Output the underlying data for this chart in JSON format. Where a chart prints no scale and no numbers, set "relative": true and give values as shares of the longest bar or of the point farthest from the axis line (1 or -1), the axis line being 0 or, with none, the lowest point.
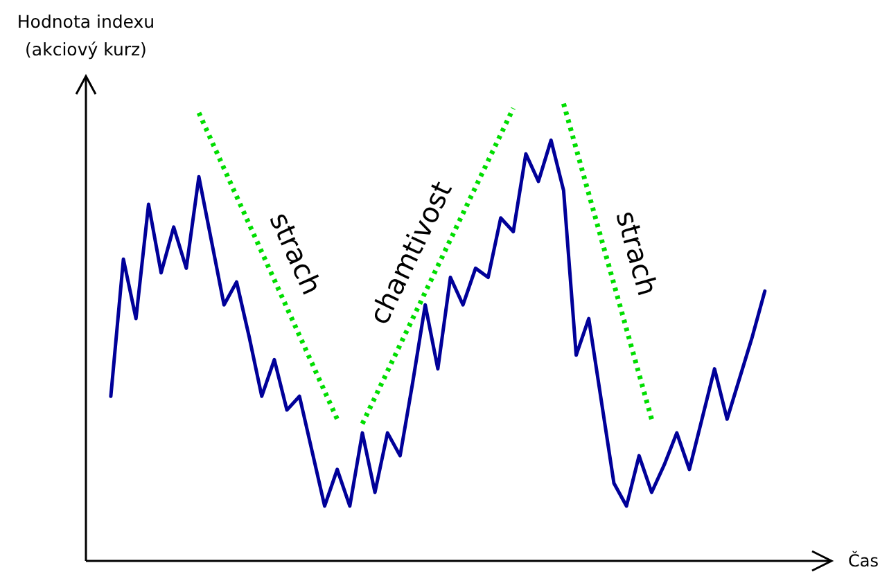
{
  "chart_data": {
    "type": "line",
    "relative": true,
    "xlabel": "Čas",
    "ylabel": "Hodnota indexu\n(akciový kurz)",
    "marker": "none",
    "categories": [
      null,
      null,
      null,
      null,
      null,
      null,
      null,
      null,
      null,
      null,
      null,
      null,
      null,
      null,
      null,
      null,
      null,
      null,
      null,
      null,
      null,
      null,
      null,
      null,
      null,
      null,
      null,
      null,
      null,
      null,
      null,
      null,
      null,
      null,
      null,
      null,
      null,
      null,
      null,
      null,
      null,
      null,
      null,
      null,
      null,
      null,
      null,
      null,
      null,
      null,
      null,
      null,
      null
    ],
    "series": [
      {
        "color": "#000099",
        "line_style": "solid",
        "values": [
          0.36,
          0.66,
          0.53,
          0.78,
          0.63,
          0.73,
          0.64,
          0.84,
          0.7,
          0.56,
          0.61,
          0.49,
          0.36,
          0.44,
          0.33,
          0.36,
          0.24,
          0.12,
          0.2,
          0.12,
          0.28,
          0.15,
          0.28,
          0.23,
          0.39,
          0.56,
          0.42,
          0.62,
          0.56,
          0.64,
          0.62,
          0.75,
          0.72,
          0.89,
          0.83,
          0.92,
          0.81,
          0.45,
          0.53,
          0.35,
          0.17,
          0.12,
          0.23,
          0.15,
          0.21,
          0.28,
          0.2,
          0.31,
          0.42,
          0.31,
          0.4,
          0.49,
          0.59
        ]
      },
      {
        "color": "#00dd00",
        "line_style": "dotted",
        "values": [
          null,
          null,
          null,
          null,
          null,
          null,
          null,
          0.98,
          null,
          null,
          null,
          null,
          null,
          null,
          null,
          null,
          null,
          null,
          0.31,
          null,
          null,
          null,
          null,
          null,
          null,
          null,
          null,
          null,
          null,
          null,
          null,
          null,
          null,
          null,
          null,
          null,
          null,
          null,
          null,
          null,
          null,
          null,
          null,
          null,
          null,
          null,
          null,
          null,
          null,
          null,
          null,
          null,
          null
        ]
      },
      {
        "color": "#00dd00",
        "line_style": "dotted",
        "values": [
          null,
          null,
          null,
          null,
          null,
          null,
          null,
          null,
          null,
          null,
          null,
          null,
          null,
          null,
          null,
          null,
          null,
          null,
          null,
          null,
          0.3,
          null,
          null,
          null,
          null,
          null,
          null,
          null,
          null,
          null,
          null,
          null,
          0.99,
          null,
          null,
          null,
          null,
          null,
          null,
          null,
          null,
          null,
          null,
          null,
          null,
          null,
          null,
          null,
          null,
          null,
          null,
          null,
          null
        ]
      },
      {
        "color": "#00dd00",
        "line_style": "dotted",
        "values": [
          null,
          null,
          null,
          null,
          null,
          null,
          null,
          null,
          null,
          null,
          null,
          null,
          null,
          null,
          null,
          null,
          null,
          null,
          null,
          null,
          null,
          null,
          null,
          null,
          null,
          null,
          null,
          null,
          null,
          null,
          null,
          null,
          null,
          null,
          null,
          null,
          1.0,
          null,
          null,
          null,
          null,
          null,
          null,
          0.31,
          null,
          null,
          null,
          null,
          null,
          null,
          null,
          null,
          null
        ]
      }
    ],
    "annotations": [
      "strach",
      "chamtivost",
      "strach"
    ]
  }
}
